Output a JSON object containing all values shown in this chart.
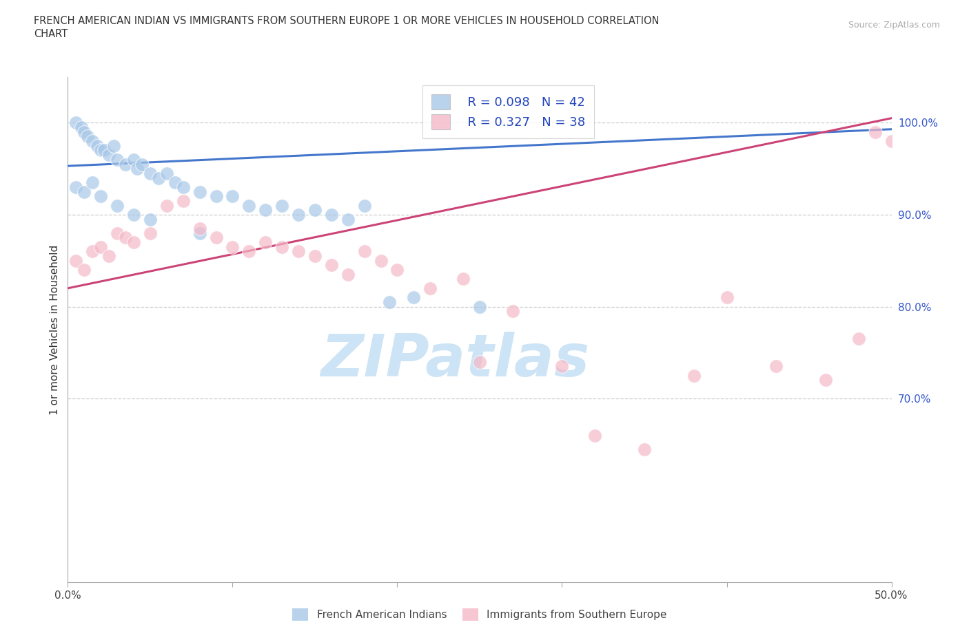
{
  "title_line1": "FRENCH AMERICAN INDIAN VS IMMIGRANTS FROM SOUTHERN EUROPE 1 OR MORE VEHICLES IN HOUSEHOLD CORRELATION",
  "title_line2": "CHART",
  "source": "Source: ZipAtlas.com",
  "ylabel": "1 or more Vehicles in Household",
  "xlim": [
    0.0,
    50.0
  ],
  "ylim": [
    50.0,
    105.0
  ],
  "xtick_pos": [
    0,
    10,
    20,
    30,
    40,
    50
  ],
  "xticklabels": [
    "0.0%",
    "",
    "",
    "",
    "",
    "50.0%"
  ],
  "ytick_positions": [
    100.0,
    90.0,
    80.0,
    70.0
  ],
  "ytick_labels": [
    "100.0%",
    "90.0%",
    "80.0%",
    "70.0%"
  ],
  "blue_label": "French American Indians",
  "pink_label": "Immigrants from Southern Europe",
  "blue_R": "R = 0.098",
  "blue_N": "N = 42",
  "pink_R": "R = 0.327",
  "pink_N": "N = 38",
  "blue_color": "#a8c8e8",
  "pink_color": "#f4b8c8",
  "blue_line_color": "#4477cc",
  "pink_line_color": "#cc4477",
  "watermark_color": "#cce4f5",
  "grid_color": "#cccccc",
  "blue_scatter_x": [
    0.5,
    0.8,
    1.0,
    1.2,
    1.5,
    1.8,
    2.0,
    2.2,
    2.5,
    2.8,
    3.0,
    3.5,
    4.0,
    4.2,
    4.5,
    5.0,
    5.5,
    6.0,
    6.5,
    7.0,
    8.0,
    9.0,
    10.0,
    11.0,
    12.0,
    13.0,
    14.0,
    15.0,
    16.0,
    17.0,
    18.0,
    19.5,
    21.0,
    25.0
  ],
  "blue_scatter_y": [
    100.0,
    99.5,
    99.0,
    98.5,
    98.0,
    97.5,
    97.0,
    97.0,
    96.5,
    97.5,
    96.0,
    95.5,
    96.0,
    95.0,
    95.5,
    94.5,
    94.0,
    94.5,
    93.5,
    93.0,
    92.5,
    92.0,
    92.0,
    91.0,
    90.5,
    91.0,
    90.0,
    90.5,
    90.0,
    89.5,
    91.0,
    80.5,
    81.0,
    80.0
  ],
  "blue_scatter_x2": [
    0.5,
    1.0,
    1.5,
    2.0,
    3.0,
    4.0,
    5.0,
    8.0
  ],
  "blue_scatter_y2": [
    93.0,
    92.5,
    93.5,
    92.0,
    91.0,
    90.0,
    89.5,
    88.0
  ],
  "pink_scatter_x": [
    0.5,
    1.0,
    1.5,
    2.0,
    2.5,
    3.0,
    3.5,
    4.0,
    5.0,
    6.0,
    7.0,
    8.0,
    9.0,
    10.0,
    11.0,
    12.0,
    13.0,
    14.0,
    15.0,
    16.0,
    17.0,
    18.0,
    19.0,
    20.0,
    22.0,
    24.0,
    25.0,
    27.0,
    30.0,
    32.0,
    35.0,
    38.0,
    40.0,
    43.0,
    46.0,
    48.0,
    49.0,
    50.0
  ],
  "pink_scatter_y": [
    85.0,
    84.0,
    86.0,
    86.5,
    85.5,
    88.0,
    87.5,
    87.0,
    88.0,
    91.0,
    91.5,
    88.5,
    87.5,
    86.5,
    86.0,
    87.0,
    86.5,
    86.0,
    85.5,
    84.5,
    83.5,
    86.0,
    85.0,
    84.0,
    82.0,
    83.0,
    74.0,
    79.5,
    73.5,
    66.0,
    64.5,
    72.5,
    81.0,
    73.5,
    72.0,
    76.5,
    99.0,
    98.0
  ]
}
